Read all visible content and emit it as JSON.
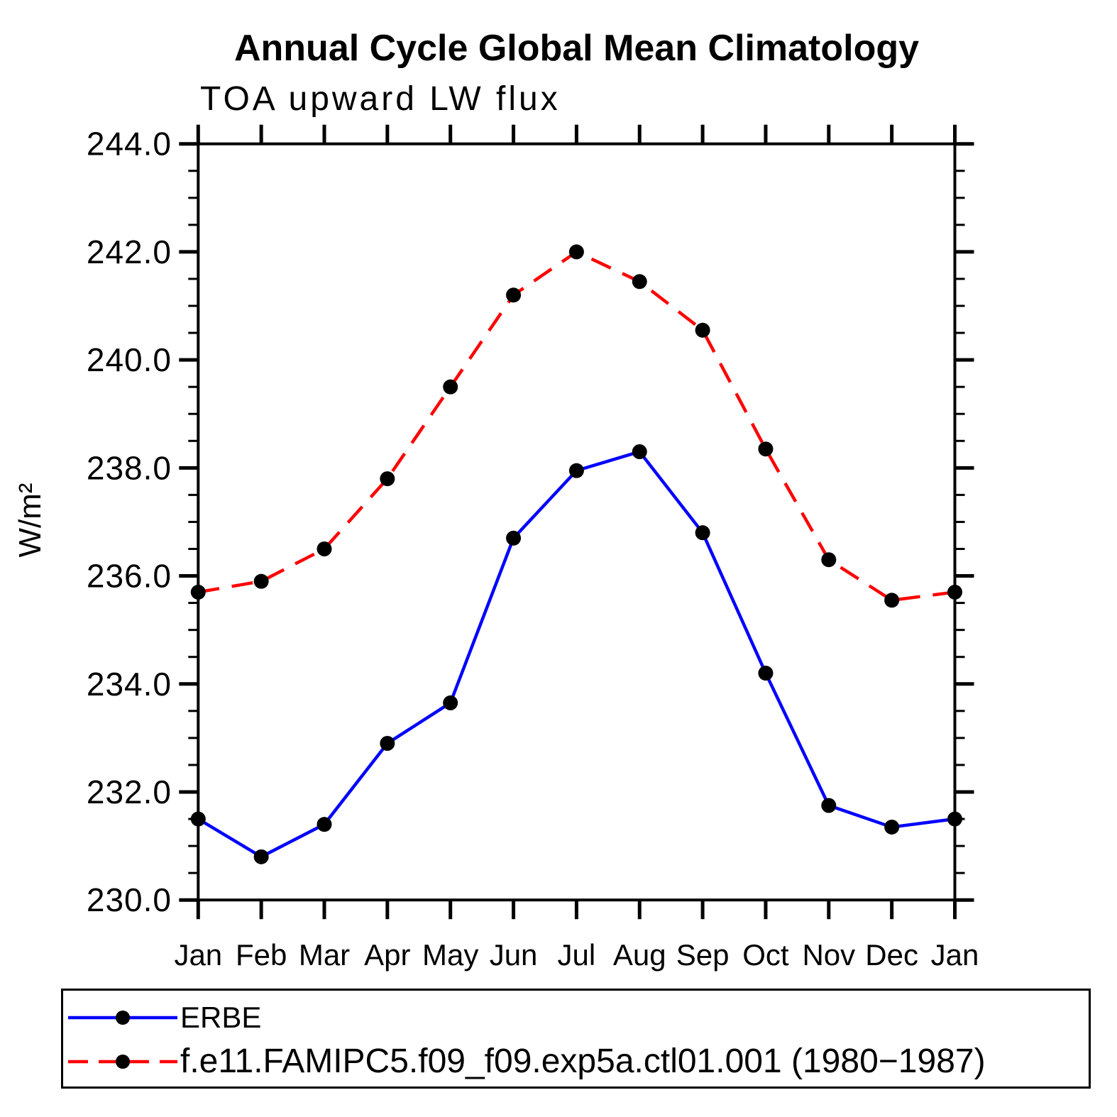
{
  "title": "Annual Cycle Global Mean Climatology",
  "subtitle": "TOA upward LW flux",
  "colors": {
    "axis": "#000000",
    "marker": "#000000",
    "erbe_line": "#0000ff",
    "model_line": "#ff0000",
    "background": "#ffffff"
  },
  "chart_data": {
    "type": "line",
    "title": "Annual Cycle Global Mean Climatology",
    "subtitle": "TOA upward LW flux",
    "xlabel": "",
    "ylabel": "W/m²",
    "categories": [
      "Jan",
      "Feb",
      "Mar",
      "Apr",
      "May",
      "Jun",
      "Jul",
      "Aug",
      "Sep",
      "Oct",
      "Nov",
      "Dec",
      "Jan"
    ],
    "series": [
      {
        "name": "ERBE",
        "color": "#0000ff",
        "line_style": "solid",
        "marker": "circle",
        "marker_color": "#000000",
        "values": [
          231.5,
          230.8,
          231.4,
          232.9,
          233.65,
          236.7,
          237.95,
          238.3,
          236.8,
          234.2,
          231.75,
          231.35,
          231.5
        ]
      },
      {
        "name": "f.e11.FAMIPC5.f09_f09.exp5a.ctl01.001 (1980−1987)",
        "color": "#ff0000",
        "line_style": "dashed",
        "marker": "circle",
        "marker_color": "#000000",
        "values": [
          235.7,
          235.9,
          236.5,
          237.8,
          239.5,
          241.2,
          242.0,
          241.45,
          240.55,
          238.35,
          236.3,
          235.55,
          235.7
        ]
      }
    ],
    "ylim": [
      230.0,
      244.0
    ],
    "ytick_step": 2.0,
    "yminor_step": 0.5,
    "ytick_labels": [
      "244.0",
      "242.0",
      "240.0",
      "238.0",
      "236.0",
      "234.0",
      "232.0",
      "230.0"
    ],
    "grid": false,
    "legend_position": "bottom-left box"
  }
}
